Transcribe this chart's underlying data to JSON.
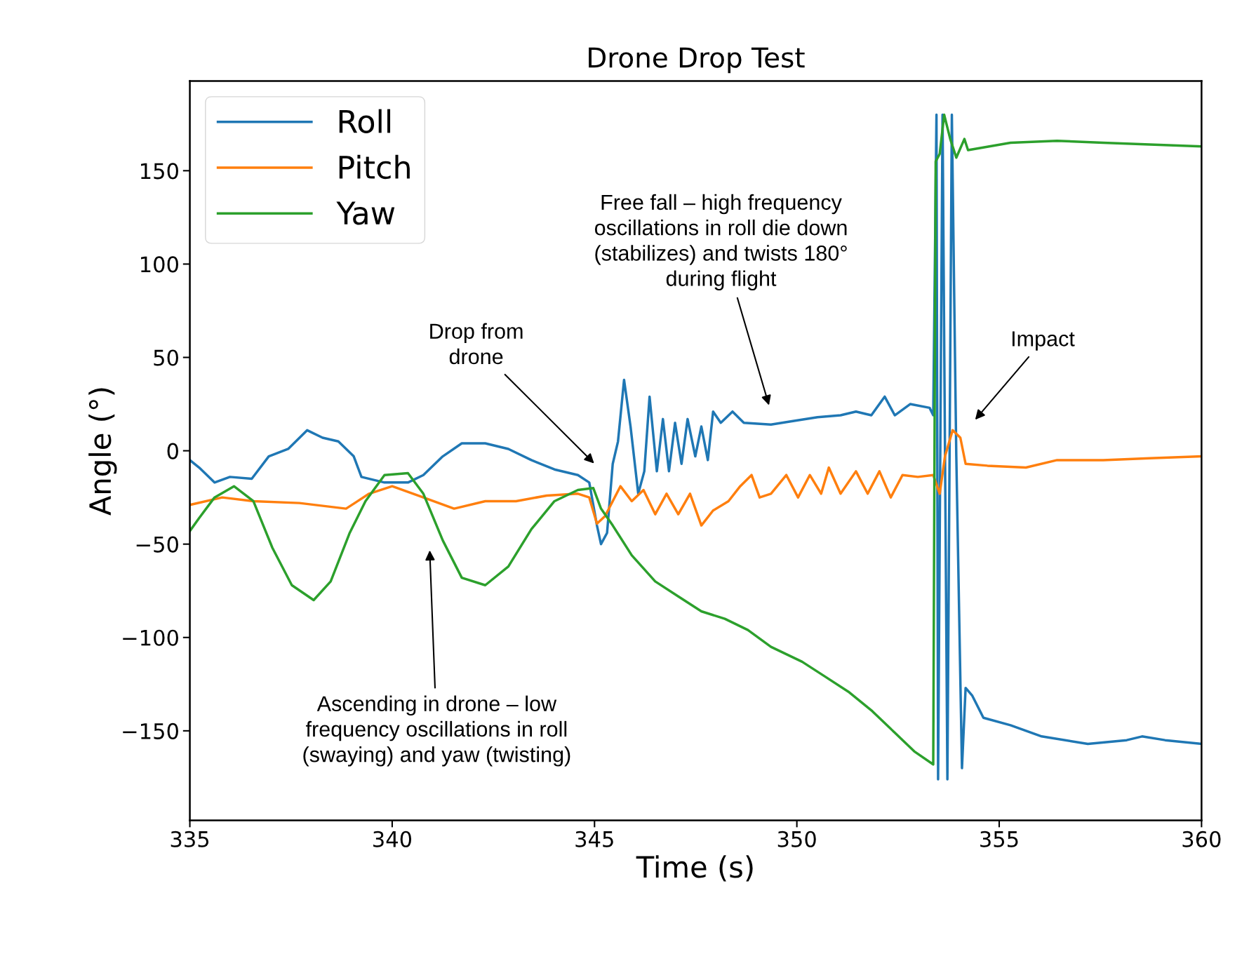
{
  "chart_data": {
    "type": "line",
    "title": "Drone Drop Test",
    "xlabel": "Time (s)",
    "ylabel": "Angle (°)",
    "xlim": [
      335,
      360
    ],
    "ylim": [
      -198,
      198
    ],
    "xticks": [
      335,
      340,
      345,
      350,
      355,
      360
    ],
    "yticks": [
      -150,
      -100,
      -50,
      0,
      50,
      100,
      150
    ],
    "grid": false,
    "legend": "top left",
    "line_style": "solid",
    "series": [
      {
        "name": "Roll",
        "color": "#1f77b4",
        "x": [
          335,
          335.23,
          335.61,
          335.99,
          336.53,
          336.95,
          337.43,
          337.9,
          338.28,
          338.67,
          339.05,
          339.24,
          339.81,
          340.39,
          340.77,
          341.25,
          341.72,
          342.3,
          342.87,
          343.44,
          344.01,
          344.59,
          344.87,
          345.06,
          345.16,
          345.31,
          345.45,
          345.58,
          345.73,
          345.89,
          346.08,
          346.23,
          346.36,
          346.54,
          346.69,
          346.84,
          346.99,
          347.15,
          347.3,
          347.49,
          347.64,
          347.8,
          347.93,
          348.12,
          348.41,
          348.69,
          349.36,
          349.93,
          350.51,
          351.08,
          351.46,
          351.84,
          352.17,
          352.42,
          352.8,
          353.28,
          353.37,
          353.45,
          353.49,
          353.6,
          353.72,
          353.83,
          353.94,
          354.08,
          354.17,
          354.33,
          354.61,
          355.28,
          356.05,
          357.19,
          358.15,
          358.53,
          359.1,
          360
        ],
        "values": [
          -5,
          -9,
          -17,
          -14,
          -15,
          -3,
          1,
          11,
          7,
          5,
          -3,
          -14,
          -17,
          -17,
          -13,
          -3,
          4,
          4,
          1,
          -5,
          -10,
          -13,
          -17,
          -40,
          -50,
          -44,
          -7,
          5,
          38,
          13,
          -23,
          -11,
          29,
          -11,
          17,
          -11,
          15,
          -7,
          17,
          -3,
          13,
          -5,
          21,
          15,
          21,
          15,
          14,
          16,
          18,
          19,
          21,
          19,
          29,
          19,
          25,
          23,
          19,
          180,
          -176,
          180,
          -176,
          180,
          -3,
          -170,
          -127,
          -131,
          -143,
          -147,
          -153,
          -157,
          -155,
          -153,
          -155,
          -157
        ]
      },
      {
        "name": "Pitch",
        "color": "#ff7f0e",
        "x": [
          335,
          335.8,
          336.57,
          337.71,
          338.86,
          339.43,
          340,
          340.77,
          341.53,
          342.3,
          343.06,
          343.82,
          344.59,
          344.87,
          345.06,
          345.26,
          345.45,
          345.64,
          345.92,
          346.21,
          346.5,
          346.78,
          347.07,
          347.36,
          347.64,
          347.93,
          348.31,
          348.6,
          348.88,
          349.08,
          349.36,
          349.74,
          350.03,
          350.32,
          350.6,
          350.79,
          351.08,
          351.46,
          351.75,
          352.04,
          352.32,
          352.61,
          352.99,
          353.37,
          353.53,
          353.66,
          353.85,
          354.04,
          354.17,
          354.71,
          355.66,
          356.43,
          357.57,
          358.72,
          360
        ],
        "values": [
          -29,
          -25,
          -27,
          -28,
          -31,
          -23,
          -19,
          -25,
          -31,
          -27,
          -27,
          -24,
          -23,
          -25,
          -39,
          -35,
          -27,
          -19,
          -27,
          -21,
          -34,
          -23,
          -34,
          -23,
          -40,
          -32,
          -27,
          -19,
          -13,
          -25,
          -23,
          -13,
          -25,
          -13,
          -23,
          -9,
          -23,
          -11,
          -23,
          -11,
          -25,
          -13,
          -14,
          -13,
          -23,
          -3,
          11,
          7,
          -7,
          -8,
          -9,
          -5,
          -5,
          -4,
          -3
        ]
      },
      {
        "name": "Yaw",
        "color": "#2ca02c",
        "x": [
          335,
          335.23,
          335.61,
          336.09,
          336.57,
          337.04,
          337.52,
          338.06,
          338.48,
          338.95,
          339.34,
          339.81,
          340.39,
          340.77,
          341.25,
          341.72,
          342.3,
          342.87,
          343.44,
          344.01,
          344.59,
          344.97,
          345.16,
          345.45,
          345.92,
          346.5,
          347.07,
          347.64,
          348.22,
          348.79,
          349.36,
          350.13,
          350.7,
          351.27,
          351.84,
          352.42,
          352.9,
          353.37,
          353.43,
          353.53,
          353.64,
          353.79,
          353.94,
          354.14,
          354.23,
          355.28,
          356.43,
          357.57,
          358.72,
          360
        ],
        "values": [
          -43,
          -36,
          -25,
          -19,
          -27,
          -52,
          -72,
          -80,
          -70,
          -44,
          -27,
          -13,
          -12,
          -23,
          -48,
          -68,
          -72,
          -62,
          -42,
          -27,
          -21,
          -20,
          -31,
          -40,
          -56,
          -70,
          -78,
          -86,
          -90,
          -96,
          -105,
          -113,
          -121,
          -129,
          -139,
          -151,
          -161,
          -168,
          155,
          159,
          180,
          167,
          157,
          167,
          161,
          165,
          166,
          165,
          164,
          163
        ]
      }
    ],
    "annotations": [
      "Free fall – high frequency\noscillations in roll die down\n(stabilizes) and twists 180°\nduring flight",
      "Drop from\ndrone",
      "Impact",
      "Ascending in drone – low\nfrequency oscillations in roll\n(swaying) and yaw (twisting)"
    ]
  }
}
